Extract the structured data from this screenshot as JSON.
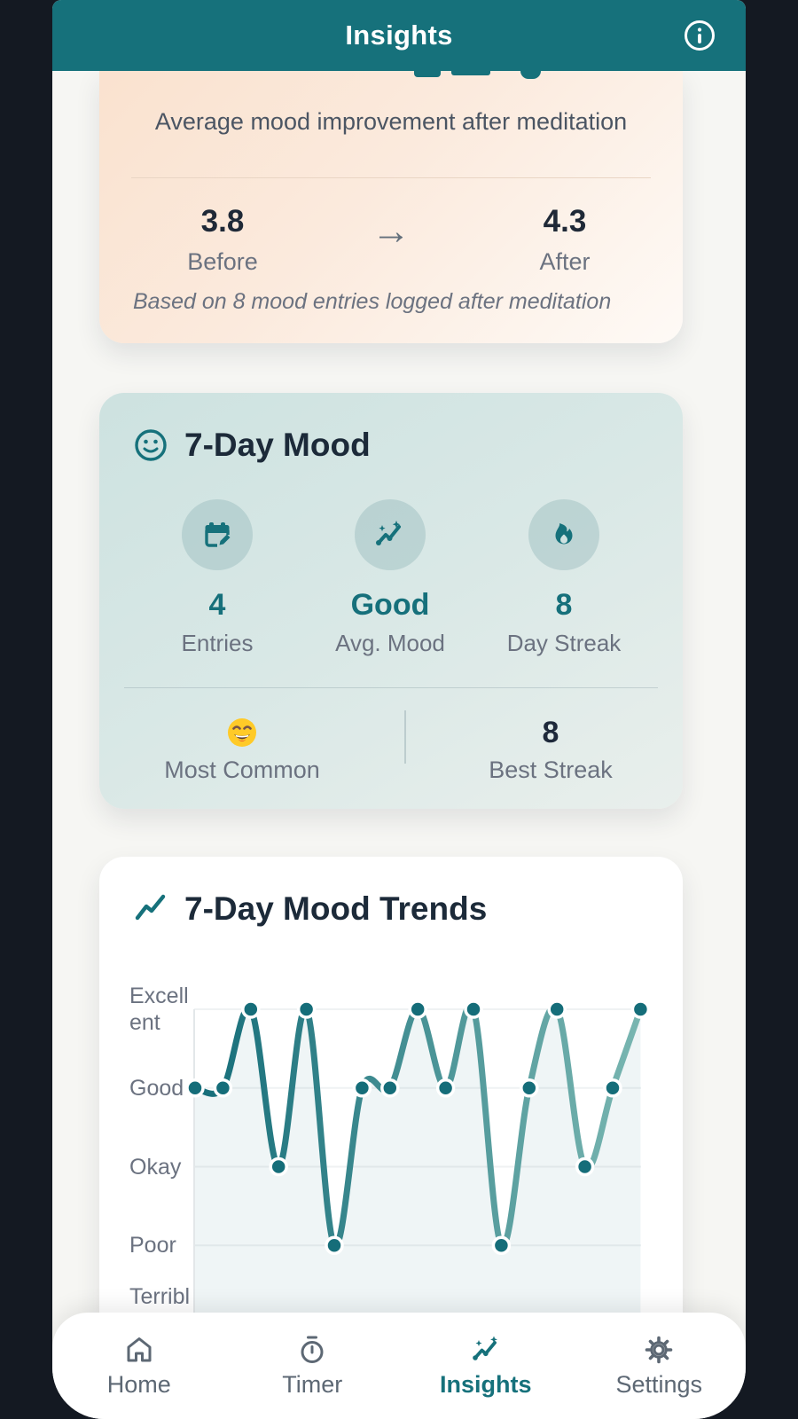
{
  "header": {
    "title": "Insights"
  },
  "impact_card": {
    "headline": "Average mood improvement after meditation",
    "before": {
      "value": "3.8",
      "label": "Before"
    },
    "after": {
      "value": "4.3",
      "label": "After"
    },
    "arrow": "→",
    "note": "Based on 8 mood entries logged after meditation"
  },
  "mood_card": {
    "title": "7-Day Mood",
    "stats": [
      {
        "icon": "calendar-edit-icon",
        "value": "4",
        "label": "Entries"
      },
      {
        "icon": "sparkline-icon",
        "value": "Good",
        "label": "Avg. Mood"
      },
      {
        "icon": "flame-icon",
        "value": "8",
        "label": "Day Streak"
      }
    ],
    "most_common": {
      "icon": "grinning-emoji",
      "label": "Most Common"
    },
    "best_streak": {
      "value": "8",
      "label": "Best Streak"
    }
  },
  "trends_card": {
    "title": "7-Day Mood Trends"
  },
  "chart_data": {
    "type": "line",
    "title": "7-Day Mood Trends",
    "y_tick_labels": [
      "Excellent",
      "Good",
      "Okay",
      "Poor",
      "Terrible"
    ],
    "y_tick_display": [
      [
        "Excell",
        "ent"
      ],
      [
        "Good"
      ],
      [
        "Okay"
      ],
      [
        "Poor"
      ],
      [
        "Terribl"
      ]
    ],
    "y_scale": {
      "Excellent": 5,
      "Good": 4,
      "Okay": 3,
      "Poor": 2,
      "Terrible": 1
    },
    "values": [
      4,
      4,
      5,
      3,
      5,
      2,
      4,
      4,
      5,
      4,
      5,
      2,
      4,
      5,
      3,
      4,
      5
    ],
    "moods": [
      "Good",
      "Good",
      "Excellent",
      "Okay",
      "Excellent",
      "Poor",
      "Good",
      "Good",
      "Excellent",
      "Good",
      "Excellent",
      "Poor",
      "Good",
      "Excellent",
      "Okay",
      "Good",
      "Excellent"
    ],
    "x_labels_visible": false,
    "grid": true,
    "legend": false,
    "line_gradient": [
      "#156d79",
      "#79b6b1"
    ],
    "point_color": "#156d79",
    "point_border": "#ffffff",
    "fill_color": "rgba(22,110,124,0.07)",
    "grid_color": "rgba(100,130,140,0.10)",
    "axis_color": "#e3e7e9"
  },
  "nav": {
    "items": [
      {
        "icon": "home-icon",
        "label": "Home",
        "active": false
      },
      {
        "icon": "timer-icon",
        "label": "Timer",
        "active": false
      },
      {
        "icon": "insights-icon",
        "label": "Insights",
        "active": true
      },
      {
        "icon": "settings-icon",
        "label": "Settings",
        "active": false
      }
    ]
  },
  "colors": {
    "accent_teal": "#16717b",
    "dark_text": "#1c2a39",
    "grey_text": "#6b7280",
    "header_bg": "#16717b",
    "page_bg": "#f6f6f3",
    "frame_bg": "#141922",
    "peach_card_top": "#fae2cf",
    "mood_card_top": "#cde2e0",
    "emoji_yellow": "#ffca28"
  }
}
